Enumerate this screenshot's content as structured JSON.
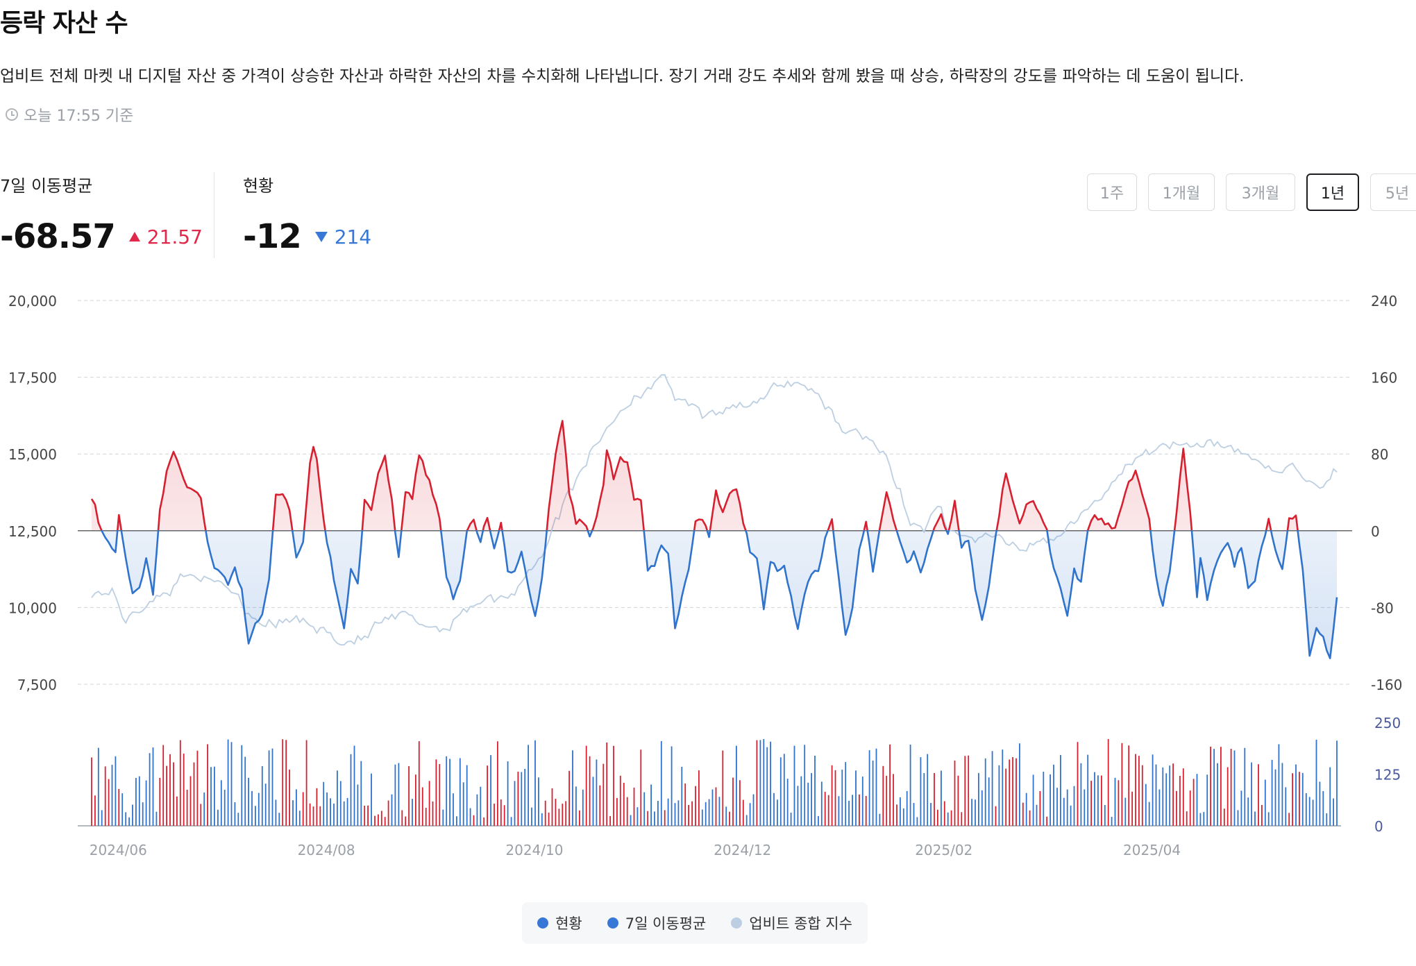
{
  "page": {
    "title": "등락 자산 수",
    "description": "업비트 전체 마켓 내 디지털 자산 중 가격이 상승한 자산과 하락한 자산의 차를 수치화해 나타냅니다. 장기 거래 강도 추세와 함께 봤을 때 상승, 하락장의 강도를 파악하는 데 도움이 됩니다.",
    "updated": "오늘 17:55 기준"
  },
  "metrics": {
    "ma7": {
      "label": "7일 이동평균",
      "value": "-68.57",
      "delta": "21.57",
      "direction": "up"
    },
    "current": {
      "label": "현황",
      "value": "-12",
      "delta": "214",
      "direction": "down"
    }
  },
  "periods": [
    {
      "label": "1주",
      "active": false
    },
    {
      "label": "1개월",
      "active": false
    },
    {
      "label": "3개월",
      "active": false
    },
    {
      "label": "1년",
      "active": true
    },
    {
      "label": "5년",
      "active": false
    }
  ],
  "colors": {
    "rise": "#d6202f",
    "fall": "#2f73cc",
    "index": "#bccfe2",
    "axis": "#444444",
    "grid": "#cfd3d8",
    "bar_axis": "#4a5a9a"
  },
  "legend": [
    {
      "label": "현황",
      "color": "#3778d6"
    },
    {
      "label": "7일 이동평균",
      "color": "#3778d6"
    },
    {
      "label": "업비트 종합 지수",
      "color": "#bccfe2"
    }
  ],
  "chart_data": {
    "type": "line",
    "x_tick_labels": [
      "2024/06",
      "2024/08",
      "2024/10",
      "2024/12",
      "2025/02",
      "2025/04"
    ],
    "x_tick_index": [
      3,
      64,
      125,
      186,
      245,
      306
    ],
    "left_axis": {
      "ticks": [
        "20,000",
        "17,500",
        "15,000",
        "12,500",
        "10,000",
        "7,500"
      ],
      "ylim": [
        7500,
        20000
      ],
      "series": "업비트 종합 지수"
    },
    "right_axis": {
      "ticks": [
        "240",
        "160",
        "80",
        "0",
        "-80",
        "-160"
      ],
      "ylim": [
        -160,
        240
      ],
      "series": "7일 이동평균"
    },
    "bar_axis": {
      "ticks": [
        "250",
        "125",
        "0"
      ],
      "ylim": [
        0,
        250
      ],
      "series": "현황"
    },
    "ma7_keypoints": [
      [
        0,
        35
      ],
      [
        3,
        0
      ],
      [
        5,
        -10
      ],
      [
        7,
        -25
      ],
      [
        8,
        15
      ],
      [
        10,
        -30
      ],
      [
        12,
        -65
      ],
      [
        14,
        -60
      ],
      [
        16,
        -30
      ],
      [
        18,
        -65
      ],
      [
        20,
        20
      ],
      [
        22,
        60
      ],
      [
        24,
        80
      ],
      [
        25,
        75
      ],
      [
        27,
        55
      ],
      [
        28,
        45
      ],
      [
        30,
        40
      ],
      [
        32,
        35
      ],
      [
        34,
        -10
      ],
      [
        36,
        -40
      ],
      [
        38,
        -45
      ],
      [
        40,
        -55
      ],
      [
        42,
        -40
      ],
      [
        44,
        -60
      ],
      [
        46,
        -120
      ],
      [
        48,
        -95
      ],
      [
        50,
        -90
      ],
      [
        52,
        -50
      ],
      [
        54,
        40
      ],
      [
        56,
        40
      ],
      [
        58,
        20
      ],
      [
        60,
        -25
      ],
      [
        62,
        -10
      ],
      [
        64,
        70
      ],
      [
        65,
        85
      ],
      [
        66,
        75
      ],
      [
        68,
        10
      ],
      [
        70,
        -30
      ],
      [
        72,
        -70
      ],
      [
        74,
        -100
      ],
      [
        76,
        -40
      ],
      [
        78,
        -55
      ],
      [
        80,
        30
      ],
      [
        82,
        20
      ],
      [
        84,
        60
      ],
      [
        86,
        80
      ],
      [
        88,
        30
      ],
      [
        90,
        -30
      ],
      [
        92,
        40
      ],
      [
        94,
        35
      ],
      [
        96,
        80
      ],
      [
        98,
        60
      ],
      [
        100,
        40
      ],
      [
        102,
        10
      ],
      [
        104,
        -50
      ],
      [
        106,
        -70
      ],
      [
        108,
        -50
      ],
      [
        110,
        0
      ],
      [
        112,
        10
      ],
      [
        114,
        -10
      ],
      [
        116,
        15
      ],
      [
        118,
        -20
      ],
      [
        120,
        10
      ],
      [
        122,
        -40
      ],
      [
        124,
        -45
      ],
      [
        126,
        -20
      ],
      [
        128,
        -60
      ],
      [
        130,
        -90
      ],
      [
        132,
        -50
      ],
      [
        134,
        20
      ],
      [
        136,
        80
      ],
      [
        138,
        115
      ],
      [
        140,
        40
      ],
      [
        142,
        10
      ],
      [
        144,
        10
      ],
      [
        146,
        -5
      ],
      [
        148,
        15
      ],
      [
        150,
        45
      ],
      [
        151,
        85
      ],
      [
        153,
        55
      ],
      [
        155,
        75
      ],
      [
        157,
        70
      ],
      [
        159,
        35
      ],
      [
        161,
        30
      ],
      [
        163,
        -40
      ],
      [
        165,
        -35
      ],
      [
        167,
        -15
      ],
      [
        169,
        -25
      ],
      [
        171,
        -100
      ],
      [
        173,
        -70
      ],
      [
        175,
        -40
      ],
      [
        177,
        10
      ],
      [
        179,
        10
      ],
      [
        181,
        -5
      ],
      [
        183,
        40
      ],
      [
        185,
        20
      ],
      [
        187,
        40
      ],
      [
        189,
        45
      ],
      [
        191,
        10
      ],
      [
        193,
        -20
      ],
      [
        195,
        -30
      ],
      [
        197,
        -80
      ],
      [
        199,
        -30
      ],
      [
        201,
        -40
      ],
      [
        203,
        -35
      ],
      [
        205,
        -70
      ],
      [
        207,
        -100
      ],
      [
        209,
        -65
      ],
      [
        211,
        -45
      ],
      [
        213,
        -40
      ],
      [
        215,
        -10
      ],
      [
        217,
        10
      ],
      [
        219,
        -50
      ],
      [
        221,
        -110
      ],
      [
        223,
        -80
      ],
      [
        225,
        -20
      ],
      [
        227,
        10
      ],
      [
        229,
        -40
      ],
      [
        231,
        0
      ],
      [
        233,
        40
      ],
      [
        235,
        10
      ],
      [
        237,
        -10
      ],
      [
        239,
        -35
      ],
      [
        241,
        -20
      ],
      [
        243,
        -45
      ],
      [
        245,
        -20
      ],
      [
        247,
        0
      ],
      [
        249,
        15
      ],
      [
        251,
        -5
      ],
      [
        253,
        30
      ],
      [
        255,
        -15
      ],
      [
        257,
        -10
      ],
      [
        259,
        -60
      ],
      [
        261,
        -95
      ],
      [
        263,
        -60
      ],
      [
        265,
        -5
      ],
      [
        267,
        40
      ],
      [
        268,
        60
      ],
      [
        270,
        30
      ],
      [
        272,
        10
      ],
      [
        274,
        25
      ],
      [
        276,
        30
      ],
      [
        278,
        20
      ],
      [
        280,
        0
      ],
      [
        282,
        -40
      ],
      [
        284,
        -60
      ],
      [
        286,
        -90
      ],
      [
        288,
        -40
      ],
      [
        290,
        -55
      ],
      [
        292,
        0
      ],
      [
        294,
        15
      ],
      [
        296,
        10
      ],
      [
        298,
        5
      ],
      [
        300,
        5
      ],
      [
        302,
        25
      ],
      [
        304,
        50
      ],
      [
        306,
        60
      ],
      [
        308,
        40
      ],
      [
        310,
        15
      ],
      [
        312,
        -50
      ],
      [
        314,
        -80
      ],
      [
        316,
        -40
      ],
      [
        318,
        20
      ],
      [
        320,
        85
      ],
      [
        322,
        20
      ],
      [
        324,
        -70
      ],
      [
        325,
        -30
      ],
      [
        327,
        -70
      ],
      [
        329,
        -40
      ],
      [
        331,
        -20
      ],
      [
        333,
        -10
      ],
      [
        335,
        -35
      ],
      [
        337,
        -15
      ],
      [
        339,
        -60
      ],
      [
        341,
        -50
      ],
      [
        343,
        -15
      ],
      [
        345,
        10
      ],
      [
        347,
        -20
      ],
      [
        349,
        -40
      ],
      [
        351,
        15
      ],
      [
        353,
        15
      ],
      [
        355,
        -40
      ],
      [
        357,
        -130
      ],
      [
        359,
        -100
      ],
      [
        361,
        -110
      ],
      [
        363,
        -135
      ],
      [
        365,
        -70
      ]
    ],
    "index_keypoints": [
      [
        0,
        10450
      ],
      [
        6,
        10500
      ],
      [
        10,
        9600
      ],
      [
        14,
        9900
      ],
      [
        18,
        10300
      ],
      [
        22,
        10400
      ],
      [
        26,
        11000
      ],
      [
        30,
        11100
      ],
      [
        34,
        10850
      ],
      [
        38,
        10800
      ],
      [
        42,
        10500
      ],
      [
        46,
        9800
      ],
      [
        50,
        9500
      ],
      [
        54,
        9450
      ],
      [
        58,
        9600
      ],
      [
        62,
        9600
      ],
      [
        66,
        9250
      ],
      [
        70,
        9300
      ],
      [
        72,
        8800
      ],
      [
        76,
        8900
      ],
      [
        80,
        9000
      ],
      [
        84,
        9500
      ],
      [
        88,
        9650
      ],
      [
        92,
        9800
      ],
      [
        96,
        9500
      ],
      [
        100,
        9350
      ],
      [
        104,
        9300
      ],
      [
        108,
        9800
      ],
      [
        112,
        10100
      ],
      [
        116,
        10300
      ],
      [
        120,
        10300
      ],
      [
        124,
        10500
      ],
      [
        128,
        11200
      ],
      [
        132,
        11700
      ],
      [
        136,
        12800
      ],
      [
        140,
        13800
      ],
      [
        144,
        14600
      ],
      [
        148,
        15300
      ],
      [
        152,
        16000
      ],
      [
        156,
        16500
      ],
      [
        160,
        16900
      ],
      [
        164,
        17200
      ],
      [
        168,
        17500
      ],
      [
        172,
        16700
      ],
      [
        176,
        16600
      ],
      [
        180,
        16200
      ],
      [
        184,
        16400
      ],
      [
        188,
        16600
      ],
      [
        192,
        16600
      ],
      [
        196,
        16700
      ],
      [
        200,
        17200
      ],
      [
        204,
        17300
      ],
      [
        208,
        17300
      ],
      [
        212,
        17000
      ],
      [
        216,
        16500
      ],
      [
        220,
        15800
      ],
      [
        224,
        15700
      ],
      [
        228,
        15500
      ],
      [
        232,
        15000
      ],
      [
        236,
        14000
      ],
      [
        240,
        12800
      ],
      [
        244,
        12500
      ],
      [
        248,
        13300
      ],
      [
        252,
        12500
      ],
      [
        256,
        12300
      ],
      [
        260,
        12200
      ],
      [
        264,
        12400
      ],
      [
        268,
        12100
      ],
      [
        272,
        11900
      ],
      [
        276,
        12000
      ],
      [
        280,
        12200
      ],
      [
        284,
        12400
      ],
      [
        288,
        12800
      ],
      [
        292,
        13200
      ],
      [
        296,
        13600
      ],
      [
        300,
        14200
      ],
      [
        304,
        14700
      ],
      [
        308,
        15000
      ],
      [
        312,
        15200
      ],
      [
        316,
        15300
      ],
      [
        320,
        15400
      ],
      [
        324,
        15300
      ],
      [
        328,
        15400
      ],
      [
        332,
        15200
      ],
      [
        336,
        15100
      ],
      [
        340,
        14900
      ],
      [
        344,
        14600
      ],
      [
        348,
        14400
      ],
      [
        352,
        14600
      ],
      [
        356,
        14200
      ],
      [
        360,
        13800
      ],
      [
        364,
        14400
      ]
    ]
  }
}
